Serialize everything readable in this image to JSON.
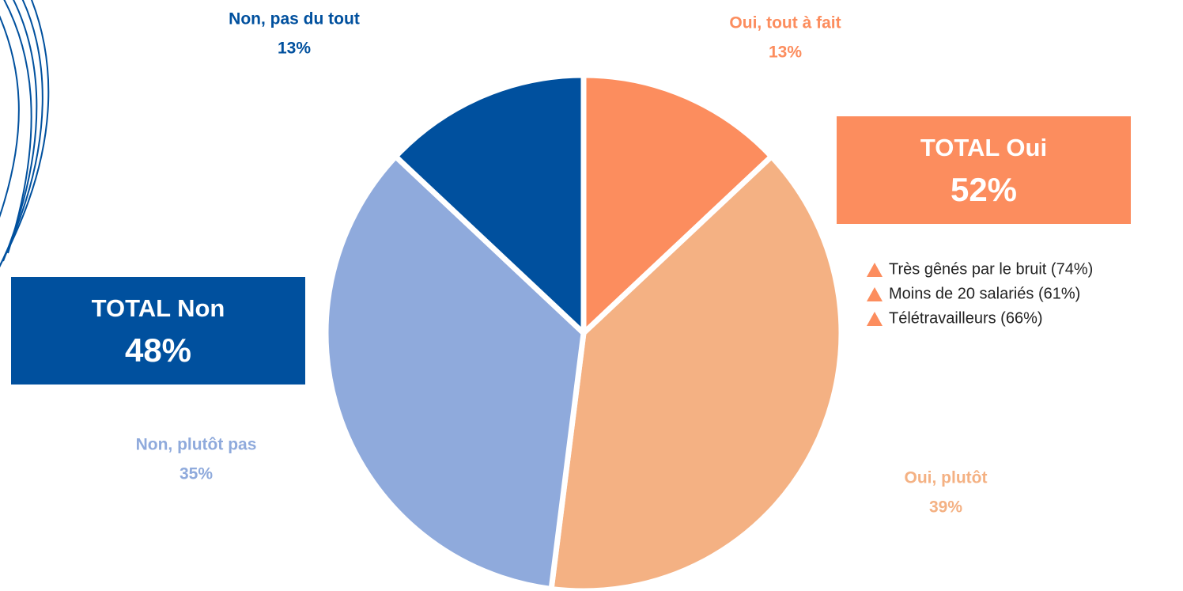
{
  "chart_data": {
    "type": "pie",
    "categories": [
      "Oui, tout à fait",
      "Oui, plutôt",
      "Non, plutôt pas",
      "Non, pas du tout"
    ],
    "values": [
      13,
      39,
      35,
      13
    ],
    "value_labels": [
      "13%",
      "39%",
      "35%",
      "13%"
    ],
    "colors": [
      "#fc8d5e",
      "#f4b183",
      "#8faadc",
      "#00509e"
    ],
    "totals": [
      {
        "label": "TOTAL Oui",
        "value_label": "52%",
        "color": "#fc8d5e"
      },
      {
        "label": "TOTAL Non",
        "value_label": "48%",
        "color": "#00509e"
      }
    ],
    "notes": [
      "Très gênés par le bruit (74%)",
      "Moins de 20 salariés (61%)",
      "Télétravailleurs (66%)"
    ]
  }
}
